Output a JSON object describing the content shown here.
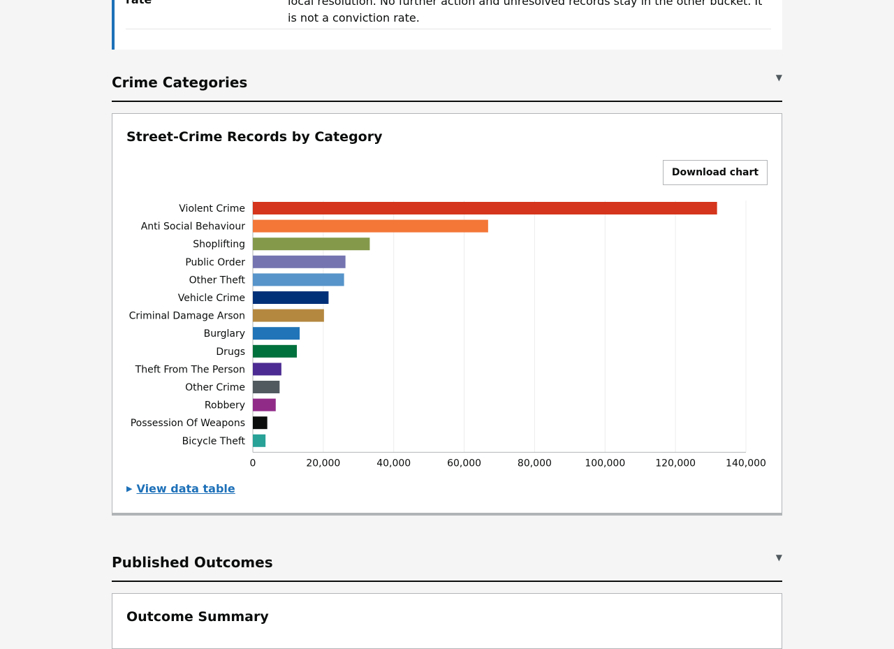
{
  "definition": {
    "term": "rate",
    "line1": "local resolution. No further action and unresolved records stay in the other bucket. It",
    "line2": "is not a conviction rate."
  },
  "sections": {
    "categories": {
      "title": "Crime Categories",
      "toggle": "▼"
    },
    "outcomes": {
      "title": "Published Outcomes",
      "toggle": "▼"
    }
  },
  "chart_card": {
    "title": "Street-Crime Records by Category",
    "download_label": "Download chart",
    "details_label": "View data table"
  },
  "outcome_card": {
    "title": "Outcome Summary"
  },
  "chart_data": {
    "type": "bar",
    "orientation": "horizontal",
    "title": "Street-Crime Records by Category",
    "categories": [
      "Violent Crime",
      "Anti Social Behaviour",
      "Shoplifting",
      "Public Order",
      "Other Theft",
      "Vehicle Crime",
      "Criminal Damage Arson",
      "Burglary",
      "Drugs",
      "Theft From The Person",
      "Other Crime",
      "Robbery",
      "Possession Of Weapons",
      "Bicycle Theft"
    ],
    "values": [
      131800,
      66800,
      33200,
      26300,
      25900,
      21500,
      20200,
      13300,
      12500,
      8100,
      7600,
      6500,
      4100,
      3600
    ],
    "colors": [
      "#d4351c",
      "#f47738",
      "#85994b",
      "#7574b1",
      "#5694ca",
      "#003078",
      "#b58840",
      "#2174b7",
      "#00703c",
      "#4c2c92",
      "#505a5f",
      "#912b88",
      "#0b0c0c",
      "#28a197"
    ],
    "xlim": [
      0,
      140000
    ],
    "xticks": [
      "0",
      "20,000",
      "40,000",
      "60,000",
      "80,000",
      "100,000",
      "120,000",
      "140,000"
    ],
    "grid": true
  }
}
